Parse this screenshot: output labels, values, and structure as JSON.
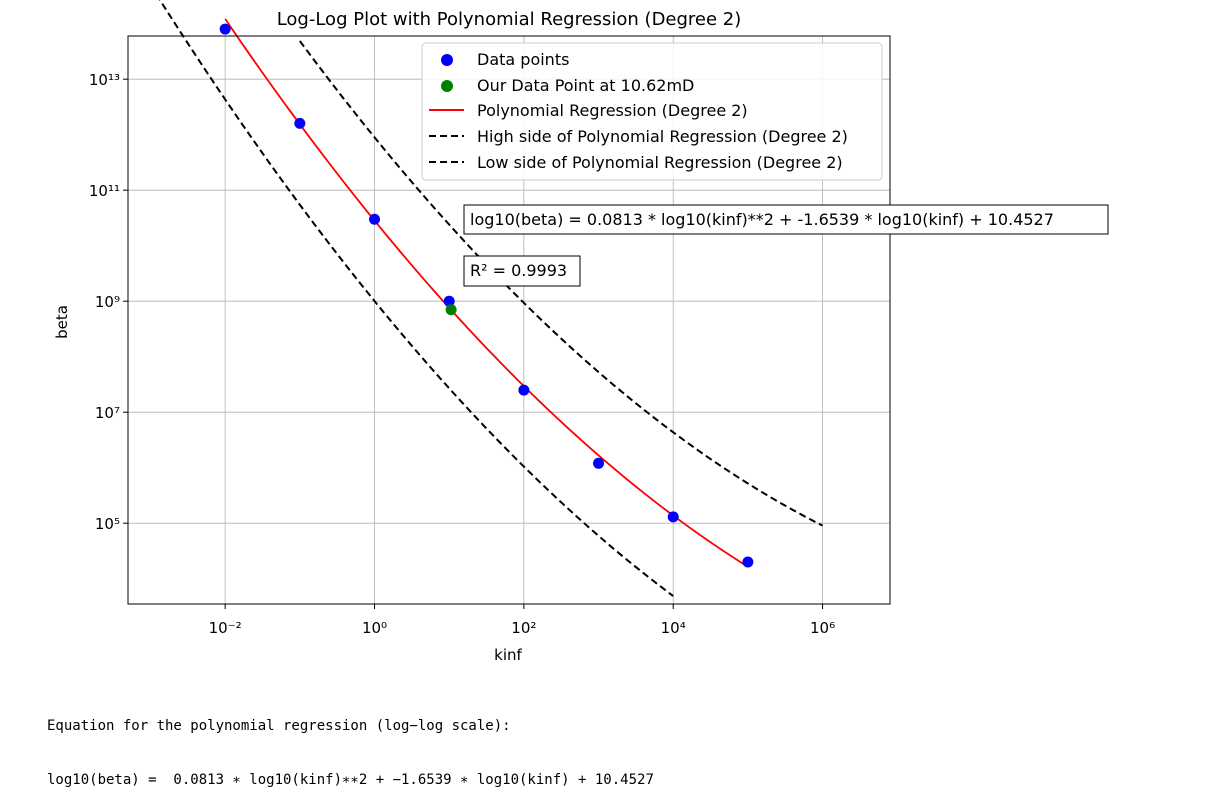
{
  "chart_data": {
    "type": "scatter",
    "title": "Log-Log Plot with Polynomial Regression (Degree 2)",
    "xlabel": "kinf",
    "ylabel": "beta",
    "xscale": "log",
    "yscale": "log",
    "xlim": [
      0.0005,
      8000000
    ],
    "ylim": [
      3500,
      60000000000000
    ],
    "x_tick_labels": [
      "10⁻²",
      "10⁰",
      "10²",
      "10⁴",
      "10⁶"
    ],
    "x_tick_values": [
      0.01,
      1,
      100,
      10000,
      1000000
    ],
    "y_tick_labels": [
      "10⁵",
      "10⁷",
      "10⁹",
      "10¹¹",
      "10¹³"
    ],
    "y_tick_values": [
      100000,
      10000000,
      1000000000,
      100000000000,
      10000000000000
    ],
    "grid": true,
    "legend_position": "top-right",
    "legend": [
      "Data points",
      "Our Data Point at 10.62mD",
      "Polynomial Regression (Degree 2)",
      "High side of Polynomial Regression (Degree 2)",
      "Low side of Polynomial Regression (Degree 2)"
    ],
    "series": [
      {
        "name": "Data points",
        "kind": "scatter",
        "color": "#0000ff",
        "x": [
          0.01,
          0.1,
          1,
          10,
          100,
          1000,
          10000,
          100000
        ],
        "y": [
          80000000000000,
          1600000000000,
          30000000000,
          1000000000,
          25000000,
          1200000,
          130000,
          20000
        ]
      },
      {
        "name": "Our Data Point at 10.62mD",
        "kind": "scatter",
        "color": "#008000",
        "x": [
          10.62
        ],
        "y": [
          700000000
        ]
      }
    ],
    "regression": {
      "coefficients": [
        0.0813,
        -1.6539,
        10.4527
      ],
      "x_range": [
        0.01,
        100000
      ],
      "color": "#ff0000",
      "high_side": {
        "x_range": [
          0.1,
          1000000
        ],
        "shift_log10": 1.5,
        "color": "#000000"
      },
      "low_side": {
        "x_range": [
          0.001,
          10000
        ],
        "shift_log10": -1.45,
        "color": "#000000"
      }
    },
    "annotations": [
      "log10(beta) =  0.0813 * log10(kinf)**2 + -1.6539 * log10(kinf) + 10.4527",
      "R² = 0.9993"
    ]
  },
  "output": {
    "line1": "Equation for the polynomial regression (log−log scale):",
    "line2": "log10(beta) =  0.0813 ∗ log10(kinf)∗∗2 + −1.6539 ∗ log10(kinf) + 10.4527"
  }
}
